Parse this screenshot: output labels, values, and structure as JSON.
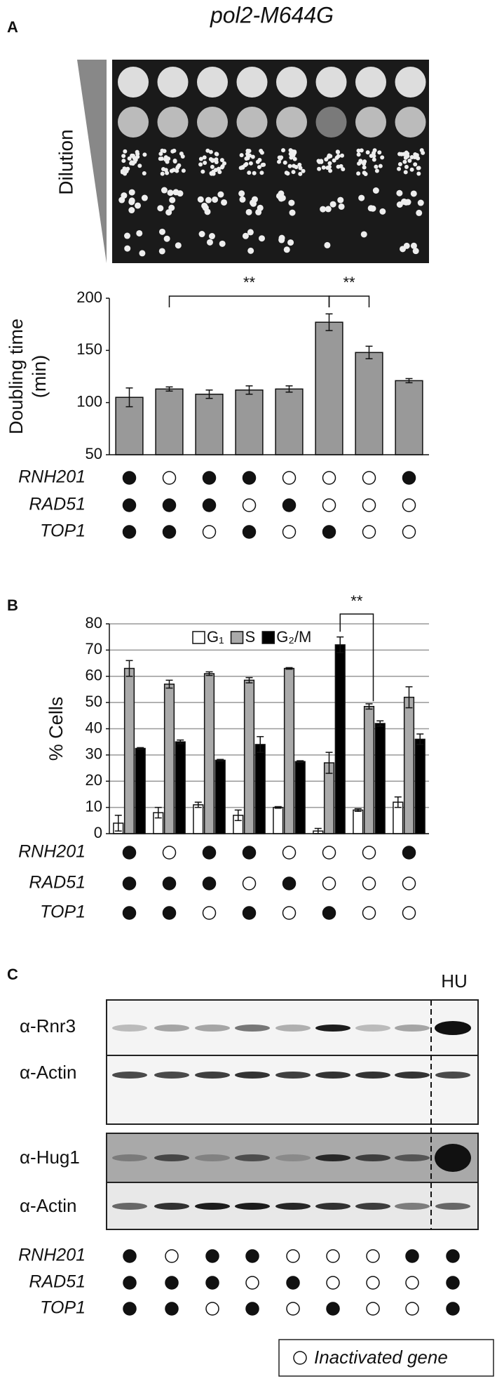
{
  "title": "pol2-M644G",
  "panel_labels": [
    "A",
    "B",
    "C"
  ],
  "plate_label": "Dilution",
  "chart_data": [
    {
      "type": "bar",
      "ylabel": [
        "Doubling time",
        "(min)"
      ],
      "ylim": [
        50,
        200
      ],
      "yticks": [
        50,
        100,
        150,
        200
      ],
      "grid": false,
      "series": [
        {
          "color": "#999999",
          "values": [
            105,
            113,
            108,
            112,
            113,
            177,
            148,
            121
          ],
          "errors": [
            9,
            2,
            4,
            4,
            3,
            8,
            6,
            2
          ]
        }
      ],
      "annotations": [
        "**",
        "**"
      ]
    },
    {
      "type": "grouped_bar",
      "ylabel": [
        "% Cells"
      ],
      "ylim": [
        0,
        80
      ],
      "yticks": [
        0,
        10,
        20,
        30,
        40,
        50,
        60,
        70,
        80
      ],
      "grid": true,
      "legend": "top",
      "series": [
        {
          "name": "G₁",
          "color": "#ffffff",
          "values": [
            4,
            8,
            11,
            7,
            10,
            1,
            9,
            12
          ],
          "errors": [
            3,
            2,
            1,
            2,
            0.3,
            1,
            0.5,
            2
          ]
        },
        {
          "name": "S",
          "color": "#aaaaaa",
          "values": [
            63,
            57,
            61,
            58.5,
            63,
            27,
            48.5,
            52
          ],
          "errors": [
            3,
            1.5,
            0.7,
            1,
            0.3,
            4,
            1,
            4
          ]
        },
        {
          "name": "G₂/M",
          "color": "#000000",
          "values": [
            32.5,
            35,
            28,
            34,
            27.5,
            72,
            42,
            36
          ],
          "errors": [
            0.3,
            0.7,
            0.3,
            3,
            0.3,
            3,
            1,
            2
          ]
        }
      ],
      "annotations": [
        "**"
      ]
    }
  ],
  "genotypes": [
    {
      "rows": [
        {
          "gene": "RNH201",
          "present": [
            true,
            false,
            true,
            true,
            false,
            false,
            false,
            true
          ]
        },
        {
          "gene": "RAD51",
          "present": [
            true,
            true,
            true,
            false,
            true,
            false,
            false,
            false
          ]
        },
        {
          "gene": "TOP1",
          "present": [
            true,
            true,
            false,
            true,
            false,
            true,
            false,
            false
          ]
        }
      ]
    },
    {
      "rows": [
        {
          "gene": "RNH201",
          "present": [
            true,
            false,
            true,
            true,
            false,
            false,
            false,
            true
          ]
        },
        {
          "gene": "RAD51",
          "present": [
            true,
            true,
            true,
            false,
            true,
            false,
            false,
            false
          ]
        },
        {
          "gene": "TOP1",
          "present": [
            true,
            true,
            false,
            true,
            false,
            true,
            false,
            false
          ]
        }
      ]
    },
    {
      "rows": [
        {
          "gene": "RNH201",
          "present": [
            true,
            false,
            true,
            true,
            false,
            false,
            false,
            true,
            true
          ]
        },
        {
          "gene": "RAD51",
          "present": [
            true,
            true,
            true,
            false,
            true,
            false,
            false,
            false,
            true
          ]
        },
        {
          "gene": "TOP1",
          "present": [
            true,
            true,
            false,
            true,
            false,
            true,
            false,
            false,
            true
          ]
        }
      ]
    }
  ],
  "blots": {
    "treatment": "HU",
    "antibodies": [
      "α-Rnr3",
      "α-Actin",
      "α-Hug1",
      "α-Actin"
    ]
  },
  "key": "Inactivated gene"
}
